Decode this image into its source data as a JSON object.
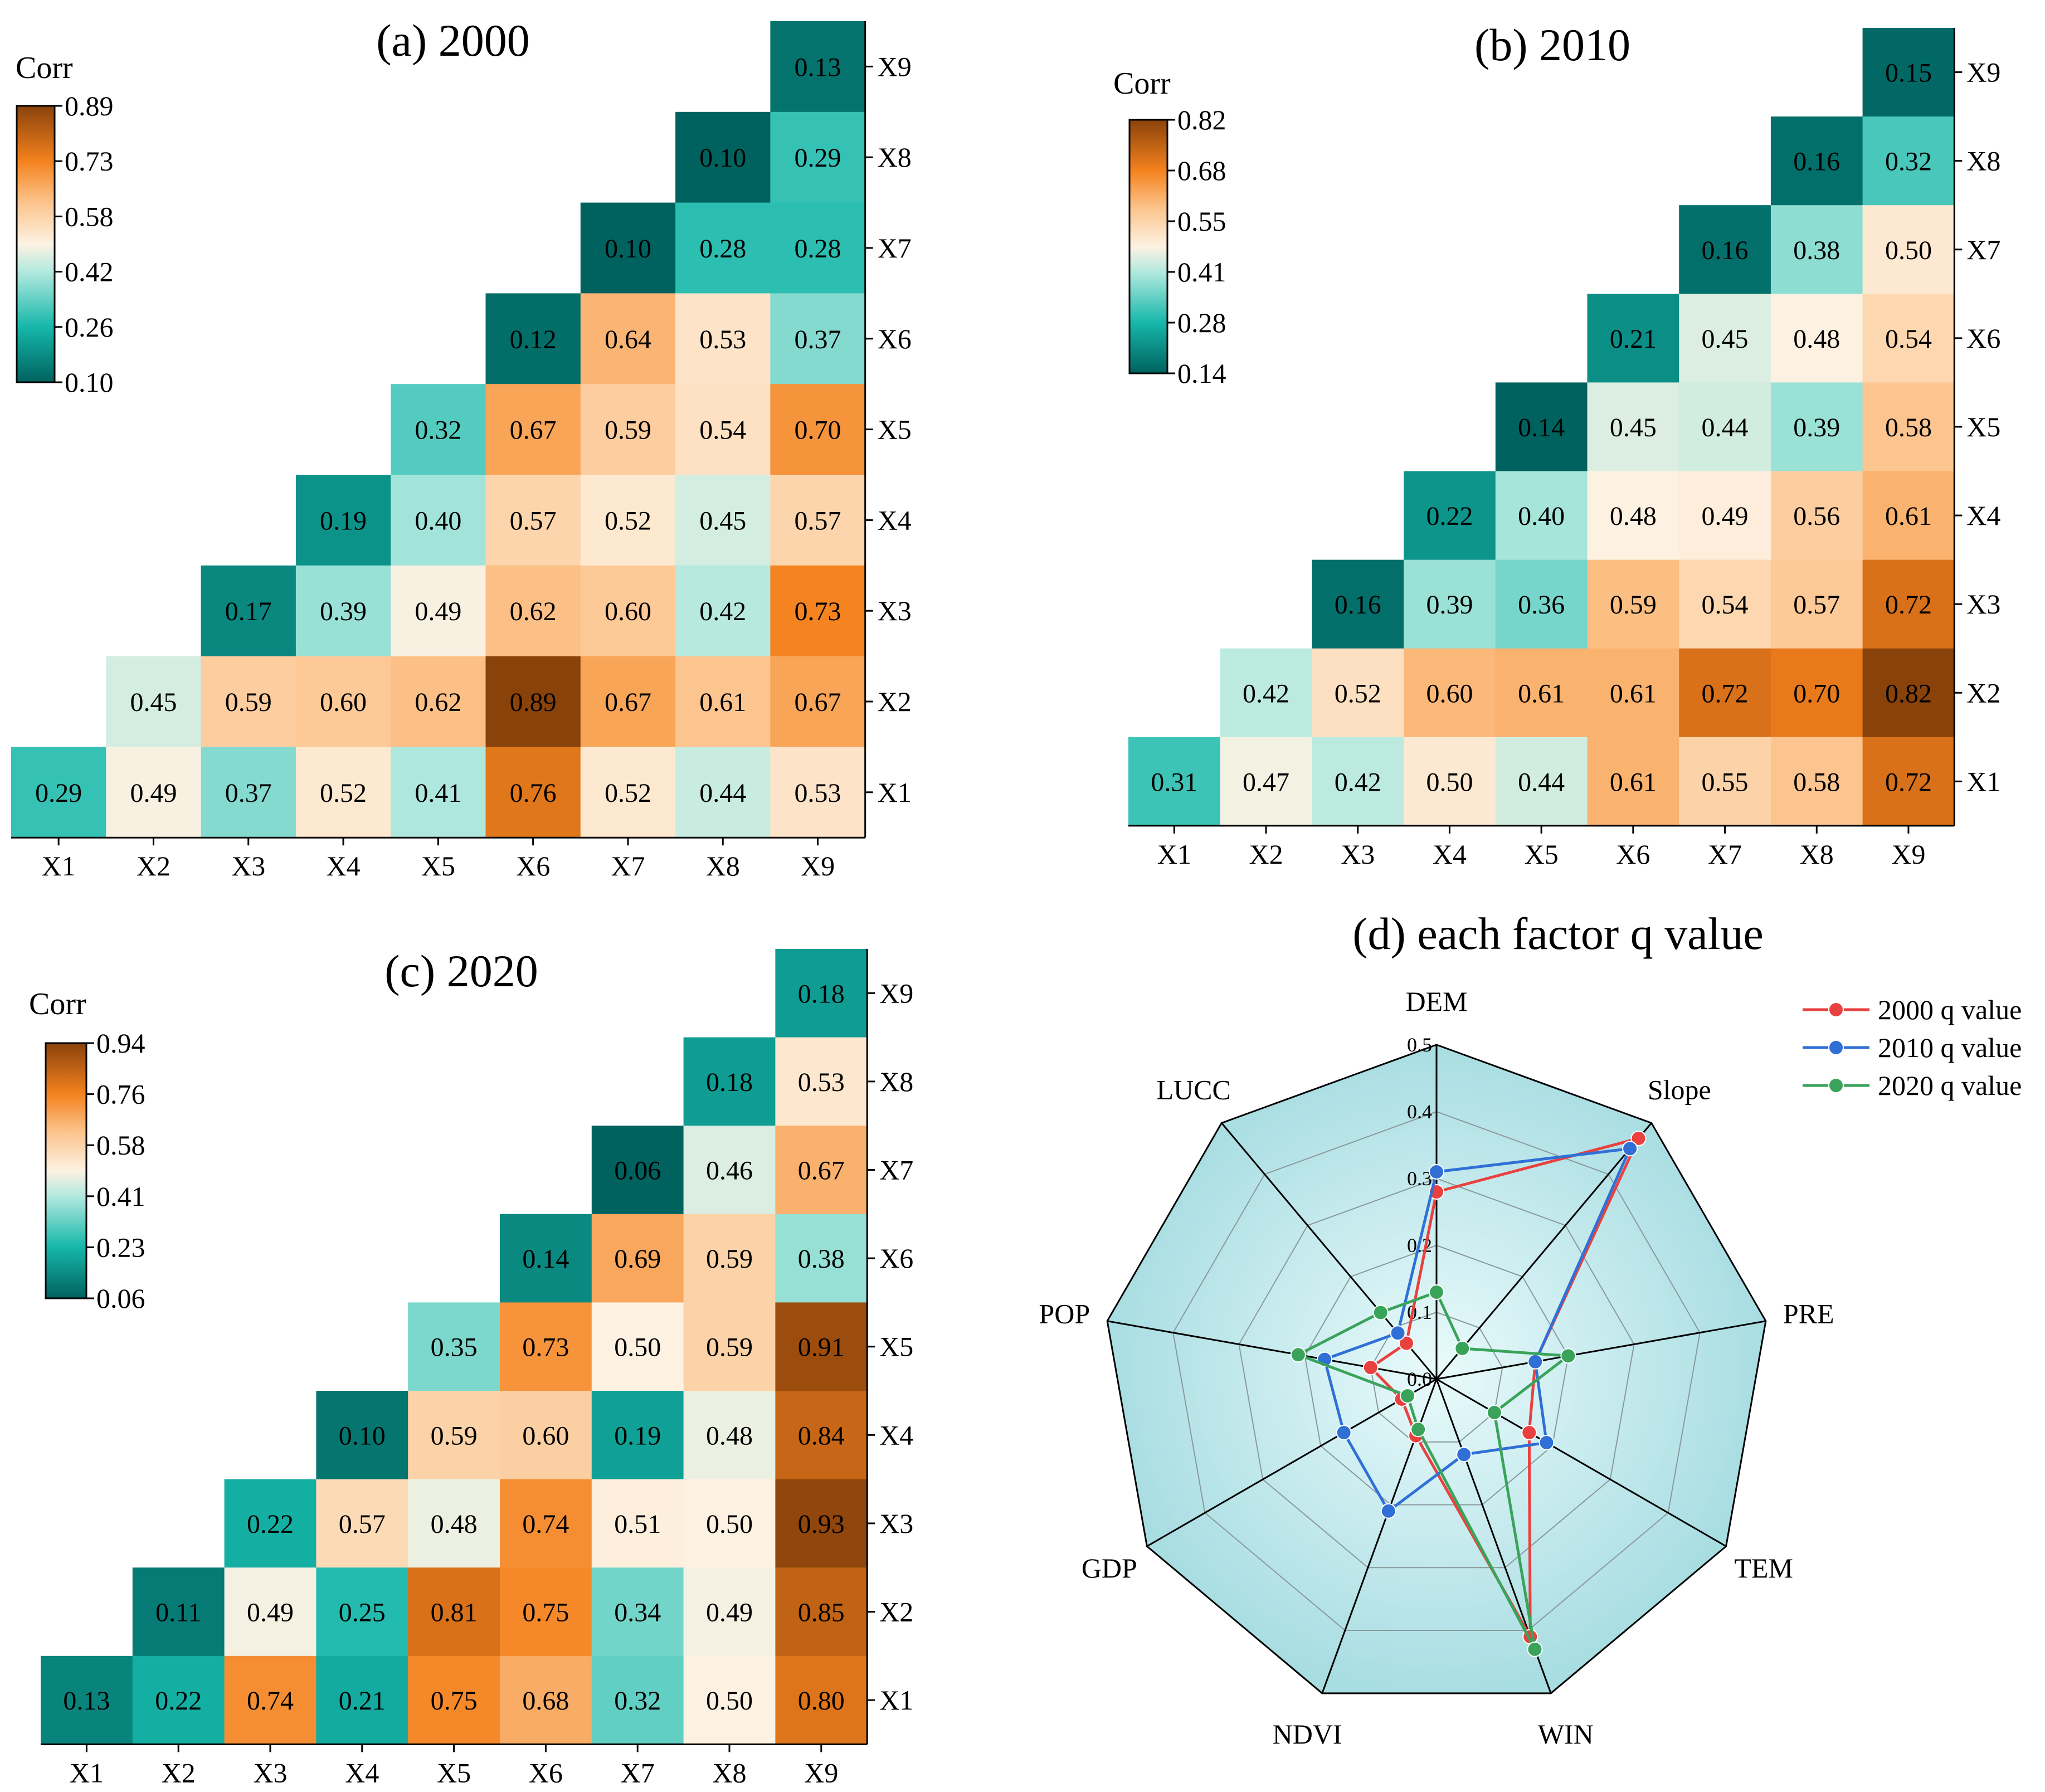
{
  "chart_data": [
    {
      "type": "heatmap",
      "title": "(a) 2000",
      "colorbar_title": "Corr",
      "colorbar_ticks": [
        "0.89",
        "0.73",
        "0.58",
        "0.42",
        "0.26",
        "0.10"
      ],
      "vmin": 0.1,
      "vmax": 0.89,
      "x_labels": [
        "X1",
        "X2",
        "X3",
        "X4",
        "X5",
        "X6",
        "X7",
        "X8",
        "X9"
      ],
      "y_labels": [
        "X9",
        "X8",
        "X7",
        "X6",
        "X5",
        "X4",
        "X3",
        "X2",
        "X1"
      ],
      "rows": [
        [
          "",
          "",
          "",
          "",
          "",
          "",
          "",
          "",
          "0.13"
        ],
        [
          "",
          "",
          "",
          "",
          "",
          "",
          "",
          "0.10",
          "0.29"
        ],
        [
          "",
          "",
          "",
          "",
          "",
          "",
          "0.10",
          "0.28",
          "0.28"
        ],
        [
          "",
          "",
          "",
          "",
          "",
          "0.12",
          "0.64",
          "0.53",
          "0.37"
        ],
        [
          "",
          "",
          "",
          "",
          "0.32",
          "0.67",
          "0.59",
          "0.54",
          "0.70"
        ],
        [
          "",
          "",
          "",
          "0.19",
          "0.40",
          "0.57",
          "0.52",
          "0.45",
          "0.57"
        ],
        [
          "",
          "",
          "0.17",
          "0.39",
          "0.49",
          "0.62",
          "0.60",
          "0.42",
          "0.73"
        ],
        [
          "",
          "0.45",
          "0.59",
          "0.60",
          "0.62",
          "0.89",
          "0.67",
          "0.61",
          "0.67"
        ],
        [
          "0.29",
          "0.49",
          "0.37",
          "0.52",
          "0.41",
          "0.76",
          "0.52",
          "0.44",
          "0.53"
        ]
      ]
    },
    {
      "type": "heatmap",
      "title": "(b) 2010",
      "colorbar_title": "Corr",
      "colorbar_ticks": [
        "0.82",
        "0.68",
        "0.55",
        "0.41",
        "0.28",
        "0.14"
      ],
      "vmin": 0.14,
      "vmax": 0.82,
      "x_labels": [
        "X1",
        "X2",
        "X3",
        "X4",
        "X5",
        "X6",
        "X7",
        "X8",
        "X9"
      ],
      "y_labels": [
        "X9",
        "X8",
        "X7",
        "X6",
        "X5",
        "X4",
        "X3",
        "X2",
        "X1"
      ],
      "rows": [
        [
          "",
          "",
          "",
          "",
          "",
          "",
          "",
          "",
          "0.15"
        ],
        [
          "",
          "",
          "",
          "",
          "",
          "",
          "",
          "0.16",
          "0.32"
        ],
        [
          "",
          "",
          "",
          "",
          "",
          "",
          "0.16",
          "0.38",
          "0.50"
        ],
        [
          "",
          "",
          "",
          "",
          "",
          "0.21",
          "0.45",
          "0.48",
          "0.54"
        ],
        [
          "",
          "",
          "",
          "",
          "0.14",
          "0.45",
          "0.44",
          "0.39",
          "0.58"
        ],
        [
          "",
          "",
          "",
          "0.22",
          "0.40",
          "0.48",
          "0.49",
          "0.56",
          "0.61"
        ],
        [
          "",
          "",
          "0.16",
          "0.39",
          "0.36",
          "0.59",
          "0.54",
          "0.57",
          "0.72"
        ],
        [
          "",
          "0.42",
          "0.52",
          "0.60",
          "0.61",
          "0.61",
          "0.72",
          "0.70",
          "0.82"
        ],
        [
          "0.31",
          "0.47",
          "0.42",
          "0.50",
          "0.44",
          "0.61",
          "0.55",
          "0.58",
          "0.72"
        ]
      ]
    },
    {
      "type": "heatmap",
      "title": "(c) 2020",
      "colorbar_title": "Corr",
      "colorbar_ticks": [
        "0.94",
        "0.76",
        "0.58",
        "0.41",
        "0.23",
        "0.06"
      ],
      "vmin": 0.06,
      "vmax": 0.94,
      "x_labels": [
        "X1",
        "X2",
        "X3",
        "X4",
        "X5",
        "X6",
        "X7",
        "X8",
        "X9"
      ],
      "y_labels": [
        "X9",
        "X8",
        "X7",
        "X6",
        "X5",
        "X4",
        "X3",
        "X2",
        "X1"
      ],
      "rows": [
        [
          "",
          "",
          "",
          "",
          "",
          "",
          "",
          "",
          "0.18"
        ],
        [
          "",
          "",
          "",
          "",
          "",
          "",
          "",
          "0.18",
          "0.53"
        ],
        [
          "",
          "",
          "",
          "",
          "",
          "",
          "0.06",
          "0.46",
          "0.67"
        ],
        [
          "",
          "",
          "",
          "",
          "",
          "0.14",
          "0.69",
          "0.59",
          "0.38"
        ],
        [
          "",
          "",
          "",
          "",
          "0.35",
          "0.73",
          "0.50",
          "0.59",
          "0.91"
        ],
        [
          "",
          "",
          "",
          "0.10",
          "0.59",
          "0.60",
          "0.19",
          "0.48",
          "0.84"
        ],
        [
          "",
          "",
          "0.22",
          "0.57",
          "0.48",
          "0.74",
          "0.51",
          "0.50",
          "0.93"
        ],
        [
          "",
          "0.11",
          "0.49",
          "0.25",
          "0.81",
          "0.75",
          "0.34",
          "0.49",
          "0.85"
        ],
        [
          "0.13",
          "0.22",
          "0.74",
          "0.21",
          "0.75",
          "0.68",
          "0.32",
          "0.50",
          "0.80"
        ]
      ]
    },
    {
      "type": "radar",
      "title": "(d) each factor q value",
      "axes": [
        "DEM",
        "Slope",
        "PRE",
        "TEM",
        "WIN",
        "NDVI",
        "GDP",
        "POP",
        "LUCC"
      ],
      "rmax": 0.5,
      "ticks": [
        "0.0",
        "0.1",
        "0.2",
        "0.3",
        "0.4",
        "0.5"
      ],
      "series": [
        {
          "name": "2000 q value",
          "color": "#e8413f",
          "values": [
            0.28,
            0.47,
            0.15,
            0.16,
            0.41,
            0.09,
            0.06,
            0.1,
            0.07
          ]
        },
        {
          "name": "2010 q value",
          "color": "#2f6fd6",
          "values": [
            0.31,
            0.45,
            0.15,
            0.19,
            0.12,
            0.21,
            0.16,
            0.17,
            0.09
          ]
        },
        {
          "name": "2020 q value",
          "color": "#3aa35a",
          "values": [
            0.13,
            0.06,
            0.2,
            0.1,
            0.43,
            0.08,
            0.05,
            0.21,
            0.13
          ]
        }
      ]
    }
  ]
}
